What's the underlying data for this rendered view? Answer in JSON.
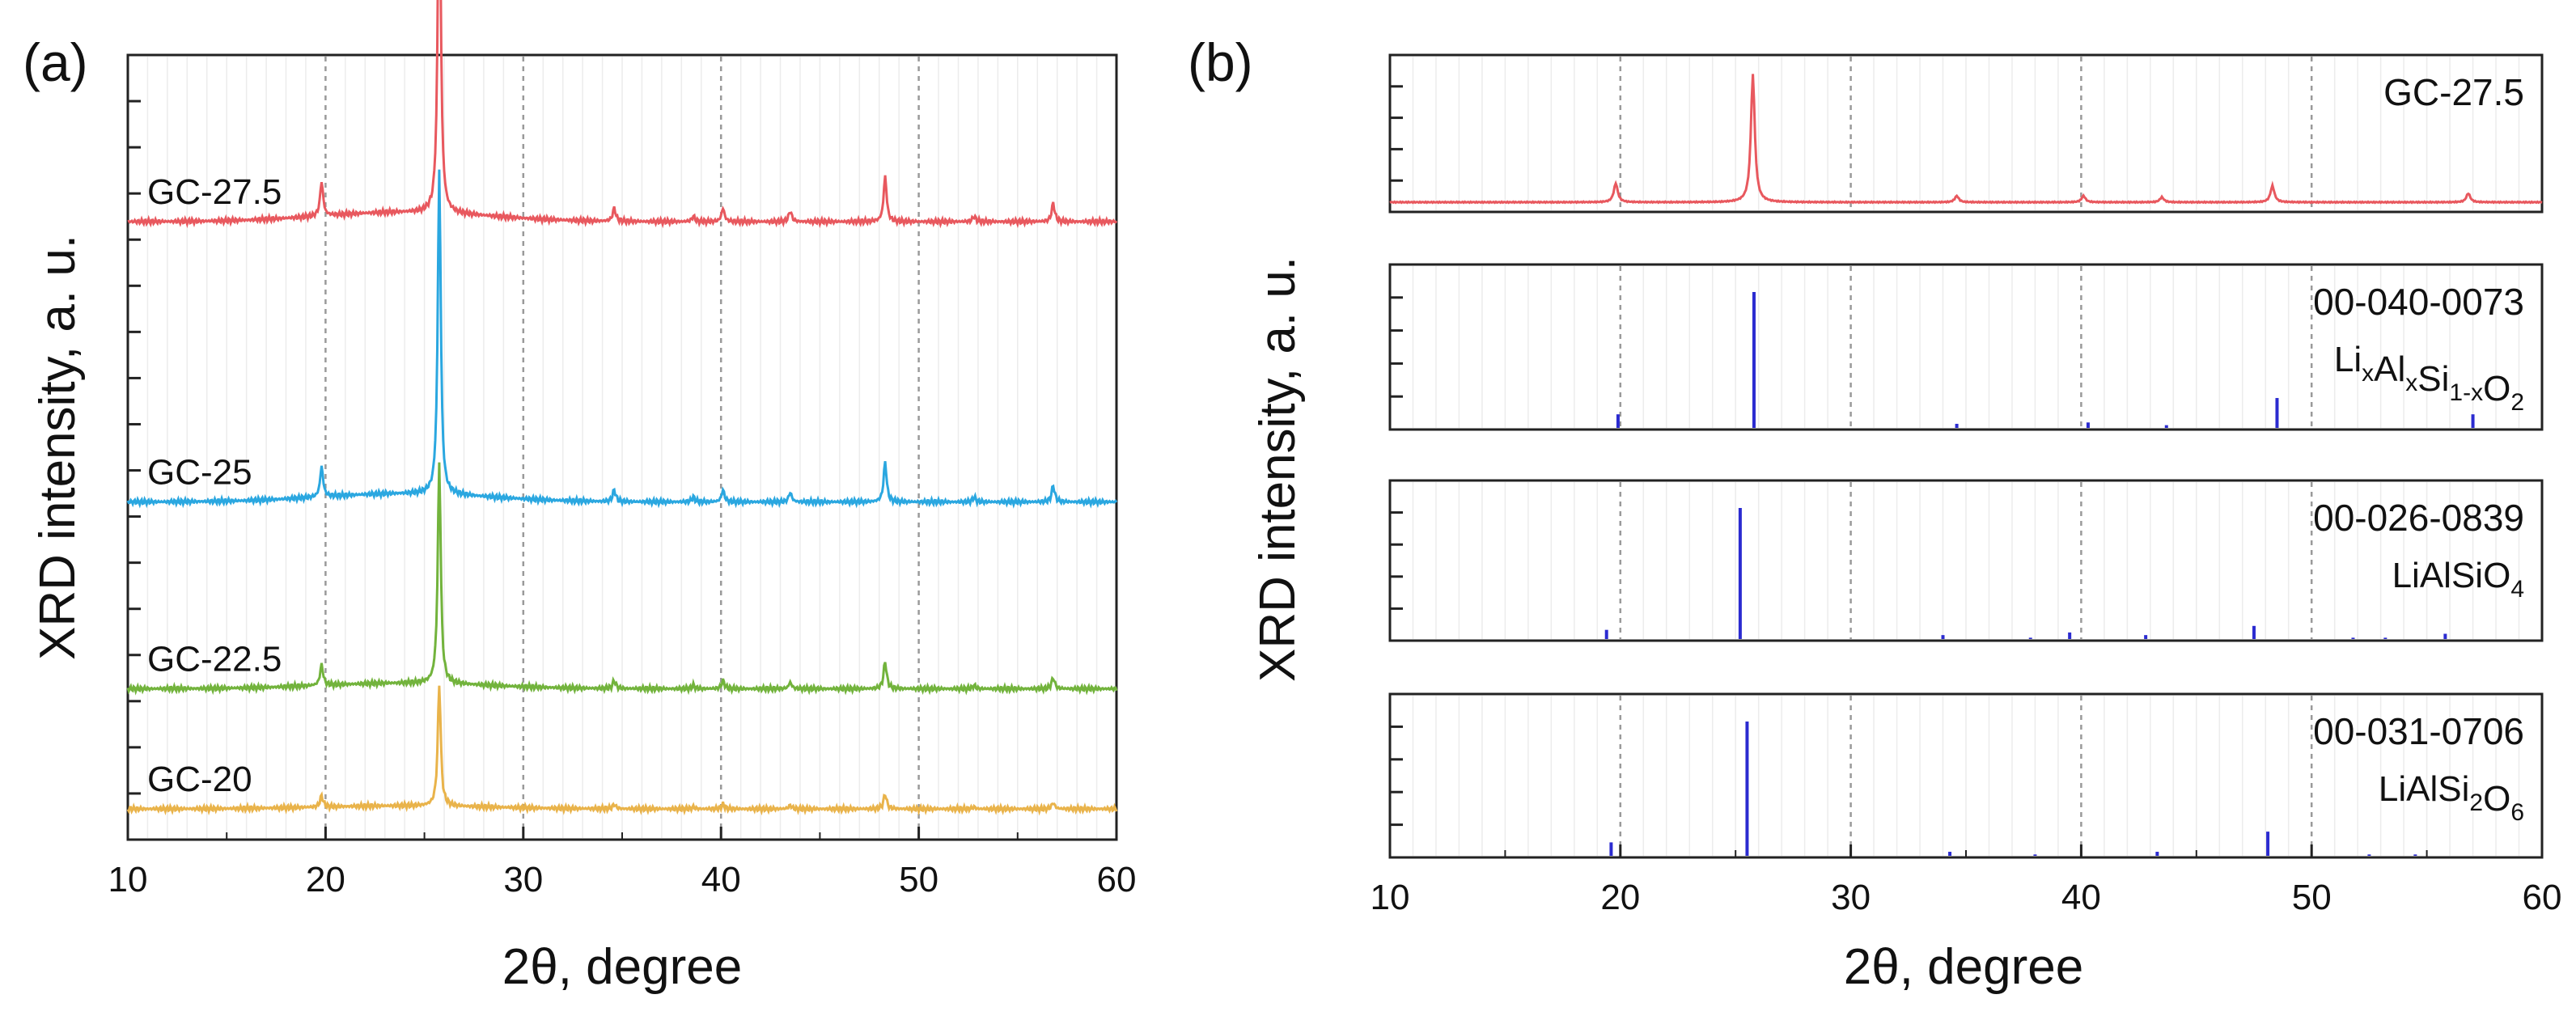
{
  "chart_data": [
    {
      "type": "line",
      "panel_label": "(a)",
      "xlabel": "2θ, degree",
      "ylabel": "XRD intensity, a. u.",
      "xlim": [
        10,
        60
      ],
      "xticks": [
        "10",
        "20",
        "30",
        "40",
        "50",
        "60"
      ],
      "grid": "dotted vertical lines at x = 20, 30, 40, 50",
      "curve_style": "offset stacked patterns",
      "series": [
        {
          "name": "GC-27.5",
          "color": "#e8585e",
          "offset": 2.2,
          "scale": 1.0
        },
        {
          "name": "GC-25",
          "color": "#2aa7e0",
          "offset": 1.15,
          "scale": 0.88
        },
        {
          "name": "GC-22.5",
          "color": "#72b33c",
          "offset": 0.45,
          "scale": 0.6
        },
        {
          "name": "GC-20",
          "color": "#e9b34a",
          "offset": 0.0,
          "scale": 0.33
        }
      ],
      "peaks": [
        {
          "x": 19.8,
          "h": 0.13
        },
        {
          "x": 25.75,
          "h": 1.38
        },
        {
          "x": 34.6,
          "h": 0.05
        },
        {
          "x": 38.6,
          "h": 0.02
        },
        {
          "x": 40.1,
          "h": 0.05
        },
        {
          "x": 43.5,
          "h": 0.04
        },
        {
          "x": 48.3,
          "h": 0.17
        },
        {
          "x": 52.8,
          "h": 0.02
        },
        {
          "x": 56.8,
          "h": 0.07
        }
      ]
    },
    {
      "type": "line",
      "panel_label": "(b)",
      "xlabel": "2θ, degree",
      "ylabel": "XRD intensity, a. u.",
      "xlim": [
        10,
        60
      ],
      "xticks": [
        "10",
        "20",
        "30",
        "40",
        "50",
        "60"
      ],
      "grid": "dotted vertical lines at x = 20, 30, 40, 50",
      "subpanels": [
        {
          "name": "GC-27.5",
          "color": "#e8585e",
          "kind": "profile",
          "peaks": [
            {
              "x": 19.8,
              "h": 0.15
            },
            {
              "x": 25.75,
              "h": 1.0
            },
            {
              "x": 34.6,
              "h": 0.05
            },
            {
              "x": 40.1,
              "h": 0.05
            },
            {
              "x": 43.5,
              "h": 0.04
            },
            {
              "x": 48.3,
              "h": 0.13
            },
            {
              "x": 56.8,
              "h": 0.07
            }
          ]
        },
        {
          "name": "00-040-0073",
          "formula": "LixAlxSi1-xO2",
          "color": "#2b2bd0",
          "kind": "sticks",
          "peaks": [
            {
              "x": 19.9,
              "h": 0.1
            },
            {
              "x": 25.8,
              "h": 1.0
            },
            {
              "x": 34.6,
              "h": 0.03
            },
            {
              "x": 40.3,
              "h": 0.04
            },
            {
              "x": 43.7,
              "h": 0.02
            },
            {
              "x": 48.5,
              "h": 0.22
            },
            {
              "x": 57.0,
              "h": 0.1
            }
          ]
        },
        {
          "name": "00-026-0839",
          "formula": "LiAlSiO4",
          "color": "#2b2bd0",
          "kind": "sticks",
          "peaks": [
            {
              "x": 19.4,
              "h": 0.07
            },
            {
              "x": 25.2,
              "h": 1.0
            },
            {
              "x": 34.0,
              "h": 0.03
            },
            {
              "x": 37.8,
              "h": 0.01
            },
            {
              "x": 39.5,
              "h": 0.05
            },
            {
              "x": 42.8,
              "h": 0.03
            },
            {
              "x": 47.5,
              "h": 0.1
            },
            {
              "x": 51.8,
              "h": 0.01
            },
            {
              "x": 53.2,
              "h": 0.01
            },
            {
              "x": 55.8,
              "h": 0.04
            }
          ]
        },
        {
          "name": "00-031-0706",
          "formula": "LiAlSi2O6",
          "color": "#2b2bd0",
          "kind": "sticks",
          "peaks": [
            {
              "x": 19.6,
              "h": 0.1
            },
            {
              "x": 25.5,
              "h": 1.0
            },
            {
              "x": 34.3,
              "h": 0.03
            },
            {
              "x": 38.0,
              "h": 0.01
            },
            {
              "x": 43.3,
              "h": 0.03
            },
            {
              "x": 48.1,
              "h": 0.18
            },
            {
              "x": 52.5,
              "h": 0.01
            },
            {
              "x": 54.5,
              "h": 0.01
            }
          ]
        }
      ]
    }
  ]
}
